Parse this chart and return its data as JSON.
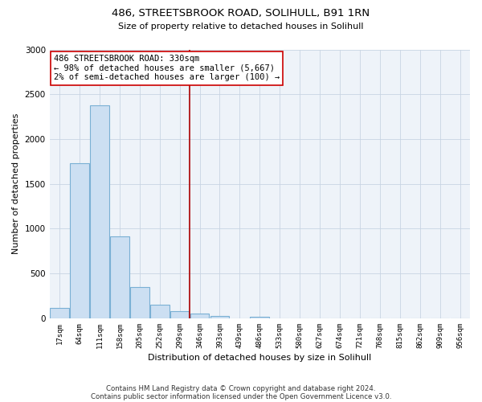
{
  "title": "486, STREETSBROOK ROAD, SOLIHULL, B91 1RN",
  "subtitle": "Size of property relative to detached houses in Solihull",
  "xlabel": "Distribution of detached houses by size in Solihull",
  "ylabel": "Number of detached properties",
  "bar_labels": [
    "17sqm",
    "64sqm",
    "111sqm",
    "158sqm",
    "205sqm",
    "252sqm",
    "299sqm",
    "346sqm",
    "393sqm",
    "439sqm",
    "486sqm",
    "533sqm",
    "580sqm",
    "627sqm",
    "674sqm",
    "721sqm",
    "768sqm",
    "815sqm",
    "862sqm",
    "909sqm",
    "956sqm"
  ],
  "bar_values": [
    120,
    1730,
    2380,
    910,
    345,
    155,
    80,
    55,
    30,
    0,
    20,
    0,
    0,
    0,
    0,
    0,
    0,
    0,
    0,
    0,
    0
  ],
  "bar_color": "#ccdff2",
  "bar_edge_color": "#7ab0d4",
  "vline_x": 6.5,
  "vline_color": "#aa0000",
  "annotation_text": "486 STREETSBROOK ROAD: 330sqm\n← 98% of detached houses are smaller (5,667)\n2% of semi-detached houses are larger (100) →",
  "annotation_box_color": "#ffffff",
  "annotation_box_edge": "#cc0000",
  "ylim": [
    0,
    3000
  ],
  "yticks": [
    0,
    500,
    1000,
    1500,
    2000,
    2500,
    3000
  ],
  "footer_line1": "Contains HM Land Registry data © Crown copyright and database right 2024.",
  "footer_line2": "Contains public sector information licensed under the Open Government Licence v3.0.",
  "background_color": "#ffffff",
  "plot_bg_color": "#eef3f9",
  "grid_color": "#c8d4e3"
}
